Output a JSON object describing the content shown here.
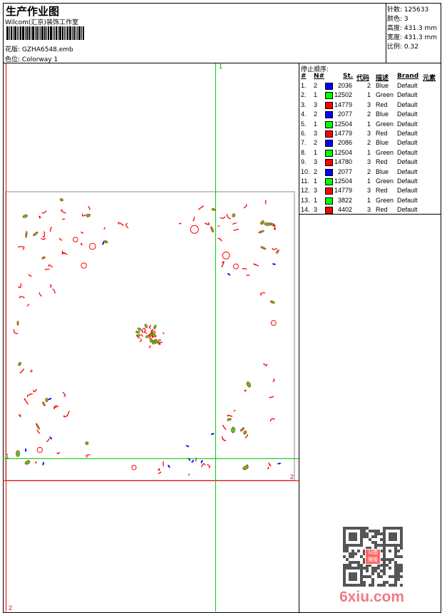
{
  "header": {
    "title": "生产作业图",
    "company": "Wilcom(汇京)装饰工作室",
    "design_label": "花版:",
    "design_file": "GZHA6548.emb",
    "colorway_label": "色位:",
    "colorway": "Colorway 1"
  },
  "stats": {
    "stitches": {
      "label": "针数:",
      "value": "125633"
    },
    "colors": {
      "label": "颜色:",
      "value": "3"
    },
    "height": {
      "label": "高度:",
      "value": "431.3 mm"
    },
    "width": {
      "label": "宽度:",
      "value": "431.3 mm"
    },
    "scale": {
      "label": "比例:",
      "value": "0.32"
    }
  },
  "stop_sequence": {
    "title": "停止顺序:",
    "columns": [
      "#",
      "N#",
      "St.",
      "代码",
      "描述",
      "Brand",
      "元素"
    ],
    "rows": [
      {
        "idx": "1.",
        "n": "2",
        "color": "#0000ff",
        "st": "2036",
        "code": "2",
        "desc": "Blue",
        "brand": "Default"
      },
      {
        "idx": "2.",
        "n": "1",
        "color": "#00ff00",
        "st": "12502",
        "code": "1",
        "desc": "Green",
        "brand": "Default"
      },
      {
        "idx": "3.",
        "n": "3",
        "color": "#ff0000",
        "st": "14779",
        "code": "3",
        "desc": "Red",
        "brand": "Default"
      },
      {
        "idx": "4.",
        "n": "2",
        "color": "#0000ff",
        "st": "2077",
        "code": "2",
        "desc": "Blue",
        "brand": "Default"
      },
      {
        "idx": "5.",
        "n": "1",
        "color": "#00ff00",
        "st": "12504",
        "code": "1",
        "desc": "Green",
        "brand": "Default"
      },
      {
        "idx": "6.",
        "n": "3",
        "color": "#ff0000",
        "st": "14779",
        "code": "3",
        "desc": "Red",
        "brand": "Default"
      },
      {
        "idx": "7.",
        "n": "2",
        "color": "#0000ff",
        "st": "2086",
        "code": "2",
        "desc": "Blue",
        "brand": "Default"
      },
      {
        "idx": "8.",
        "n": "1",
        "color": "#00ff00",
        "st": "12504",
        "code": "1",
        "desc": "Green",
        "brand": "Default"
      },
      {
        "idx": "9.",
        "n": "3",
        "color": "#ff0000",
        "st": "14780",
        "code": "3",
        "desc": "Red",
        "brand": "Default"
      },
      {
        "idx": "10.",
        "n": "2",
        "color": "#0000ff",
        "st": "2077",
        "code": "2",
        "desc": "Blue",
        "brand": "Default"
      },
      {
        "idx": "11.",
        "n": "1",
        "color": "#00ff00",
        "st": "12504",
        "code": "1",
        "desc": "Green",
        "brand": "Default"
      },
      {
        "idx": "12.",
        "n": "3",
        "color": "#ff0000",
        "st": "14779",
        "code": "3",
        "desc": "Red",
        "brand": "Default"
      },
      {
        "idx": "13.",
        "n": "1",
        "color": "#00ff00",
        "st": "3822",
        "code": "1",
        "desc": "Green",
        "brand": "Default"
      },
      {
        "idx": "14.",
        "n": "3",
        "color": "#ff0000",
        "st": "4402",
        "code": "3",
        "desc": "Red",
        "brand": "Default"
      }
    ]
  },
  "canvas": {
    "marker_top": "1",
    "marker_left": "1",
    "marker_right": "2",
    "marker_bottom": "2",
    "guide_green": "#00cc00",
    "guide_red": "#ff0000"
  },
  "watermark": {
    "text": "6xiu.com",
    "stamp": "以图搜版"
  }
}
